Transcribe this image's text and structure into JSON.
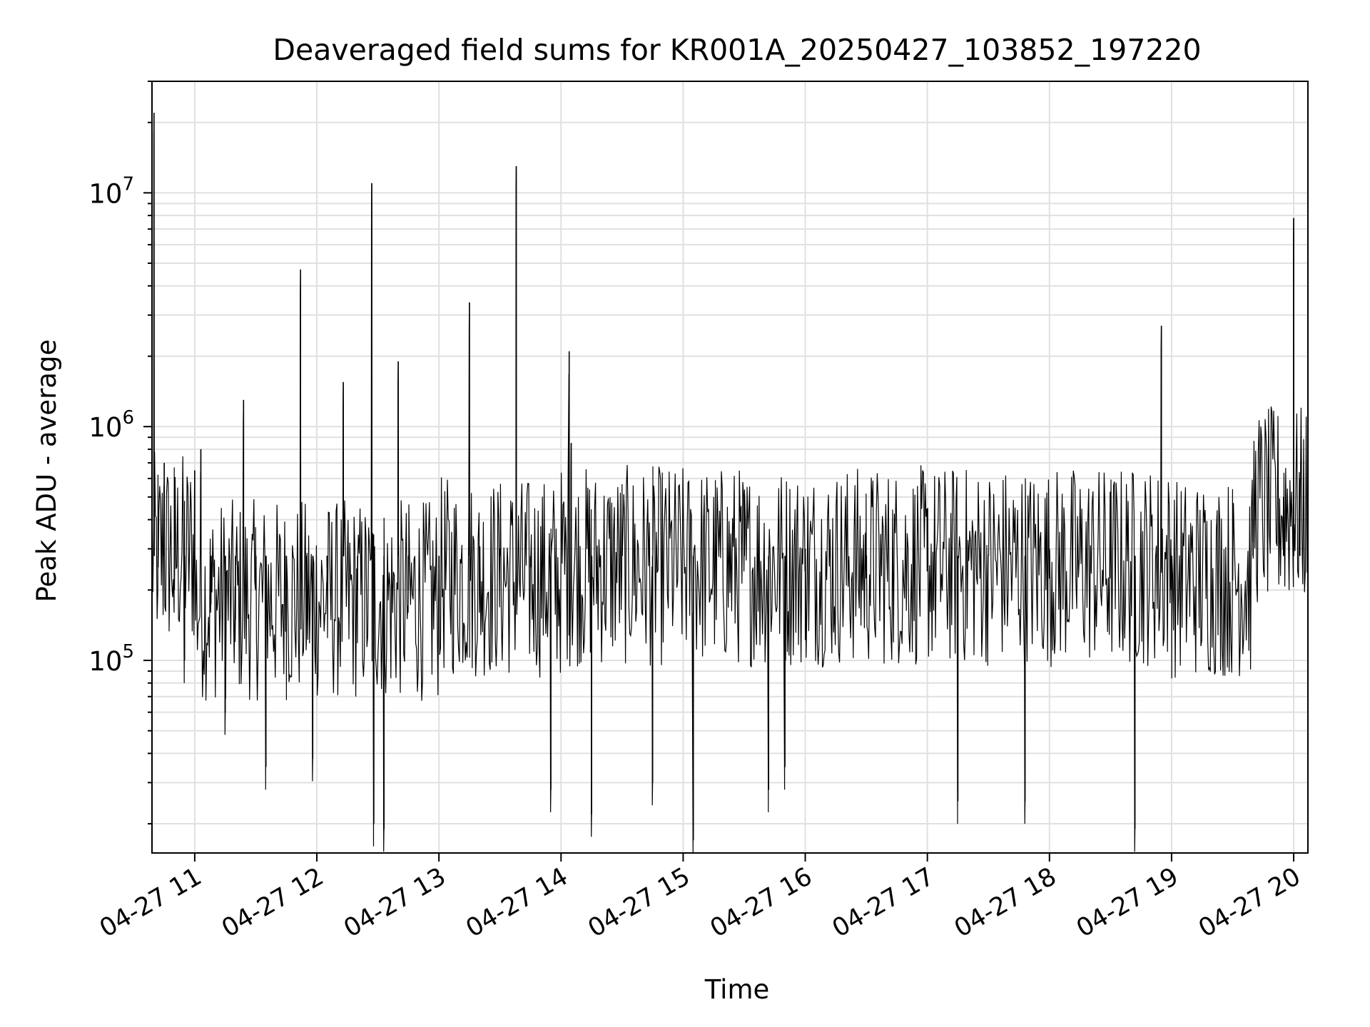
{
  "chart_data": {
    "type": "line",
    "title": "Deaveraged field sums for KR001A_20250427_103852_197220",
    "xlabel": "Time",
    "ylabel": "Peak ADU - average",
    "yscale": "log",
    "ylim": [
      15000,
      30000000
    ],
    "xlim": [
      "04-27 10:39",
      "04-27 20:07"
    ],
    "x_ticks": [
      "04-27 11",
      "04-27 12",
      "04-27 13",
      "04-27 14",
      "04-27 15",
      "04-27 16",
      "04-27 17",
      "04-27 18",
      "04-27 19",
      "04-27 20"
    ],
    "y_ticks": [
      {
        "base": "10",
        "exp": "5",
        "value": 100000
      },
      {
        "base": "10",
        "exp": "6",
        "value": 1000000
      },
      {
        "base": "10",
        "exp": "7",
        "value": 10000000
      }
    ],
    "grid": true,
    "line_color": "#000000",
    "series": [
      {
        "values": [
          [
            "04-27 10:39",
            300000
          ],
          [
            "04-27 10:40",
            22000000
          ],
          [
            "04-27 10:42",
            250000
          ],
          [
            "04-27 10:45",
            700000
          ],
          [
            "04-27 10:50",
            200000
          ],
          [
            "04-27 10:55",
            100000
          ],
          [
            "04-27 11:00",
            650000
          ],
          [
            "04-27 11:03",
            800000
          ],
          [
            "04-27 11:08",
            200000
          ],
          [
            "04-27 11:15",
            60000
          ],
          [
            "04-27 11:20",
            150000
          ],
          [
            "04-27 11:24",
            1300000
          ],
          [
            "04-27 11:30",
            250000
          ],
          [
            "04-27 11:35",
            35000
          ],
          [
            "04-27 11:45",
            200000
          ],
          [
            "04-27 11:52",
            4700000
          ],
          [
            "04-27 11:55",
            150000
          ],
          [
            "04-27 11:58",
            38000
          ],
          [
            "04-27 12:05",
            250000
          ],
          [
            "04-27 12:13",
            1550000
          ],
          [
            "04-27 12:20",
            200000
          ],
          [
            "04-27 12:27",
            11000000
          ],
          [
            "04-27 12:28",
            20000
          ],
          [
            "04-27 12:33",
            19000
          ],
          [
            "04-27 12:40",
            1900000
          ],
          [
            "04-27 12:45",
            200000
          ],
          [
            "04-27 13:00",
            250000
          ],
          [
            "04-27 13:15",
            3400000
          ],
          [
            "04-27 13:20",
            200000
          ],
          [
            "04-27 13:30",
            300000
          ],
          [
            "04-27 13:38",
            13000000
          ],
          [
            "04-27 13:45",
            250000
          ],
          [
            "04-27 13:55",
            28000
          ],
          [
            "04-27 14:04",
            2100000
          ],
          [
            "04-27 14:05",
            850000
          ],
          [
            "04-27 14:15",
            22000
          ],
          [
            "04-27 14:30",
            300000
          ],
          [
            "04-27 14:45",
            30000
          ],
          [
            "04-27 15:05",
            17000
          ],
          [
            "04-27 15:30",
            300000
          ],
          [
            "04-27 15:42",
            28000
          ],
          [
            "04-27 15:50",
            35000
          ],
          [
            "04-27 16:00",
            300000
          ],
          [
            "04-27 16:30",
            280000
          ],
          [
            "04-27 17:00",
            300000
          ],
          [
            "04-27 17:15",
            25000
          ],
          [
            "04-27 17:30",
            280000
          ],
          [
            "04-27 17:48",
            25000
          ],
          [
            "04-27 18:00",
            300000
          ],
          [
            "04-27 18:30",
            280000
          ],
          [
            "04-27 18:42",
            19000
          ],
          [
            "04-27 18:55",
            2700000
          ],
          [
            "04-27 19:00",
            250000
          ],
          [
            "04-27 19:30",
            220000
          ],
          [
            "04-27 19:40",
            400000
          ],
          [
            "04-27 19:55",
            500000
          ],
          [
            "04-27 20:00",
            7800000
          ],
          [
            "04-27 20:03",
            600000
          ],
          [
            "04-27 20:07",
            450000
          ]
        ]
      }
    ]
  }
}
